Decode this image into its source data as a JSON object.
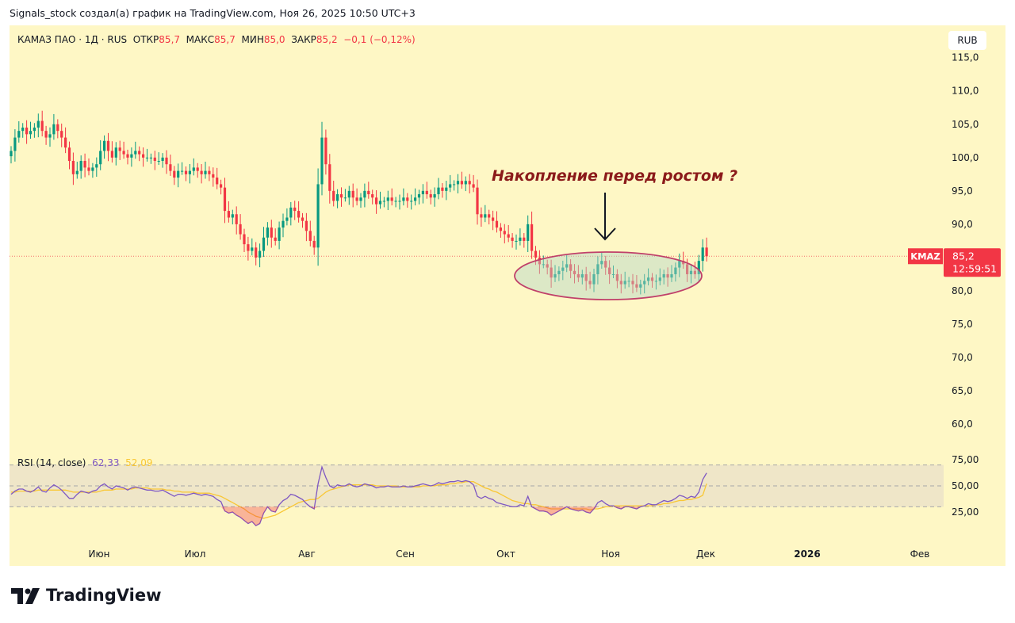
{
  "header": {
    "caption": "Signals_stock создал(а) график на TradingView.com, Ноя 26, 2025 10:50 UTC+3"
  },
  "legend": {
    "symbol": "КАМАЗ ПАО · 1Д · RUS",
    "open_label": "ОТКР",
    "open_value": "85,7",
    "high_label": "МАКС",
    "high_value": "85,7",
    "low_label": "МИН",
    "low_value": "85,0",
    "close_label": "ЗАКР",
    "close_value": "85,2",
    "change": "−0,1 (−0,12%)"
  },
  "currency_badge": "RUB",
  "price_tag": {
    "ticker": "KMAZ",
    "price": "85,2",
    "countdown": "12:59:51"
  },
  "annotation": {
    "text": "Накопление перед ростом ?"
  },
  "rsi_legend": {
    "label": "RSI (14, close)",
    "rsi_value": "62,33",
    "ma_value": "52,09"
  },
  "footer": {
    "brand": "TradingView"
  },
  "colors": {
    "up": "#089981",
    "down": "#f23645",
    "rsi_line": "#7e57c2",
    "rsi_ma": "#f9c734",
    "chart_bg": "#fef7c5",
    "ellipse_stroke": "#c0406a",
    "annotation": "#8b1a1a"
  },
  "chart_data": [
    {
      "type": "candlestick",
      "title": "КАМАЗ ПАО · 1Д · RUS",
      "x_tick_labels": [
        "Июн",
        "Июл",
        "Авг",
        "Сен",
        "Окт",
        "Ноя",
        "Дек",
        "2026",
        "Фев"
      ],
      "y_tick_labels": [
        "115,0",
        "110,0",
        "105,0",
        "100,0",
        "95,0",
        "90,0",
        "80,0",
        "75,0",
        "70,0",
        "65,0",
        "60,0"
      ],
      "ylim": [
        57,
        116
      ],
      "last_price": 85.2,
      "closes": [
        101,
        103,
        104,
        104.5,
        103.5,
        104,
        104.5,
        105.5,
        104,
        103,
        103.5,
        105,
        104,
        103,
        101.5,
        99.5,
        97.5,
        98,
        99.5,
        98.5,
        98,
        98.5,
        99,
        101,
        102.5,
        101,
        100,
        101.5,
        101,
        100.5,
        100,
        100.5,
        101,
        100.5,
        100,
        100,
        100,
        99.5,
        99.5,
        100,
        99,
        98,
        97,
        98,
        98,
        97.5,
        98,
        98.5,
        98,
        97.5,
        98,
        97.5,
        97,
        96,
        95.5,
        92,
        91,
        91.5,
        90,
        88.5,
        87,
        86,
        86.5,
        85,
        86,
        88,
        89.5,
        88,
        87.5,
        89.5,
        90.5,
        91,
        92.5,
        92,
        91,
        90.5,
        89,
        87.5,
        86.5,
        96,
        103,
        99,
        95,
        93.5,
        94.5,
        94,
        94,
        95,
        94,
        93.5,
        94,
        95,
        94.5,
        94,
        93,
        93.5,
        93.5,
        94,
        93.5,
        93.5,
        93.5,
        94,
        93.5,
        93.5,
        94,
        94.5,
        95,
        94.5,
        94,
        94.5,
        95.5,
        95,
        95.5,
        96,
        96,
        96.5,
        96,
        96.5,
        96,
        95.5,
        91.5,
        91,
        91.5,
        91,
        90.5,
        89.5,
        89,
        88.5,
        88,
        87.5,
        87.5,
        88,
        87.5,
        90,
        86,
        85,
        84,
        84,
        83.5,
        82,
        82.5,
        83,
        83.5,
        84,
        83,
        82.5,
        82,
        82.5,
        81.5,
        81,
        82.5,
        84,
        84.5,
        83.5,
        82.5,
        82.5,
        81.5,
        81,
        81.5,
        81.5,
        81,
        80.5,
        81,
        81.5,
        82,
        81.5,
        81.5,
        82,
        82.5,
        82,
        82.5,
        83.5,
        84.5,
        84,
        82.5,
        83,
        82.5,
        84.5,
        86.5,
        85.2
      ],
      "series": [
        {
          "name": "RSI (14, close)",
          "last": 62.33
        },
        {
          "name": "RSI MA",
          "last": 52.09
        }
      ],
      "annotation": "Накопление перед ростом ?"
    },
    {
      "type": "line",
      "title": "RSI (14, close)",
      "y_tick_labels": [
        "75,00",
        "50,00",
        "25,00"
      ],
      "ylim": [
        0,
        100
      ],
      "bands": [
        30,
        50,
        70
      ],
      "series": [
        {
          "name": "RSI (14, close)",
          "values": [
            42,
            45,
            47,
            47,
            45,
            44,
            46,
            49,
            45,
            44,
            48,
            51,
            49,
            46,
            42,
            38,
            38,
            42,
            45,
            44,
            43,
            45,
            46,
            50,
            52,
            49,
            47,
            50,
            49,
            48,
            46,
            48,
            49,
            48,
            47,
            46,
            46,
            45,
            45,
            46,
            44,
            42,
            40,
            42,
            42,
            41,
            42,
            43,
            42,
            41,
            42,
            41,
            40,
            37,
            35,
            26,
            24,
            25,
            22,
            20,
            17,
            14,
            16,
            12,
            14,
            24,
            30,
            26,
            25,
            32,
            36,
            38,
            42,
            41,
            39,
            37,
            33,
            30,
            28,
            52,
            68,
            58,
            50,
            48,
            51,
            50,
            50,
            52,
            50,
            49,
            50,
            52,
            51,
            50,
            48,
            49,
            49,
            50,
            49,
            49,
            49,
            50,
            49,
            49,
            50,
            51,
            52,
            51,
            50,
            51,
            53,
            52,
            53,
            54,
            54,
            55,
            54,
            55,
            54,
            51,
            40,
            38,
            40,
            38,
            37,
            34,
            33,
            32,
            31,
            30,
            30,
            32,
            31,
            40,
            30,
            28,
            26,
            26,
            25,
            22,
            24,
            26,
            28,
            30,
            28,
            27,
            26,
            27,
            25,
            24,
            28,
            34,
            36,
            33,
            31,
            31,
            29,
            28,
            30,
            30,
            29,
            28,
            30,
            31,
            33,
            32,
            32,
            34,
            36,
            35,
            36,
            38,
            41,
            40,
            38,
            40,
            39,
            44,
            56,
            62.33
          ]
        },
        {
          "name": "RSI MA",
          "values": [
            44,
            44,
            45,
            45,
            45,
            45,
            45,
            46,
            46,
            46,
            46,
            46,
            46,
            46,
            46,
            45,
            44,
            44,
            44,
            44,
            44,
            44,
            44,
            45,
            46,
            46,
            46,
            47,
            47,
            47,
            47,
            47,
            48,
            48,
            48,
            48,
            47,
            47,
            47,
            47,
            46,
            46,
            45,
            45,
            44,
            44,
            44,
            44,
            43,
            43,
            43,
            43,
            42,
            41,
            40,
            38,
            36,
            34,
            32,
            30,
            28,
            25,
            23,
            21,
            20,
            19,
            20,
            21,
            22,
            24,
            26,
            28,
            30,
            32,
            34,
            35,
            36,
            37,
            37,
            38,
            41,
            44,
            46,
            47,
            48,
            49,
            50,
            51,
            51,
            51,
            51,
            51,
            51,
            51,
            50,
            50,
            50,
            50,
            50,
            50,
            49,
            49,
            49,
            49,
            49,
            49,
            50,
            50,
            50,
            50,
            51,
            51,
            51,
            52,
            52,
            53,
            53,
            54,
            54,
            54,
            52,
            50,
            48,
            47,
            45,
            44,
            42,
            40,
            38,
            36,
            35,
            34,
            33,
            33,
            32,
            32,
            31,
            30,
            29,
            28,
            28,
            28,
            28,
            28,
            28,
            28,
            28,
            28,
            28,
            27,
            28,
            28,
            29,
            30,
            30,
            31,
            31,
            31,
            31,
            31,
            31,
            31,
            31,
            31,
            31,
            31,
            32,
            32,
            33,
            33,
            34,
            35,
            36,
            36,
            37,
            37,
            38,
            39,
            41,
            52.09
          ]
        }
      ]
    }
  ]
}
